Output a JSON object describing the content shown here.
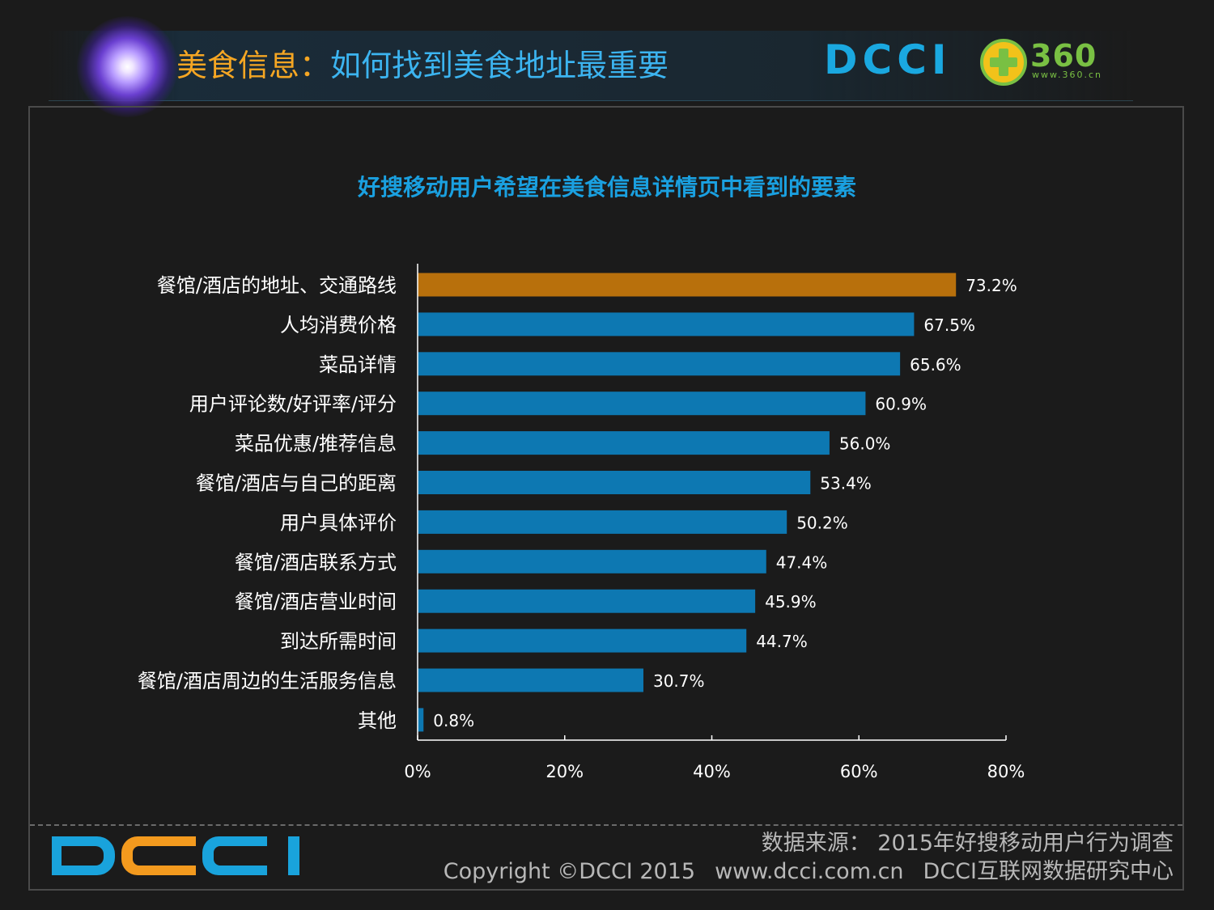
{
  "header": {
    "title_part1": "美食信息",
    "separator": "：",
    "title_part2": "如何找到美食地址最重要",
    "logo_dcci": "DCCI",
    "logo_360": "360",
    "logo_360_url": "www.360.cn"
  },
  "colors": {
    "highlight_bar": "#b8700c",
    "bar": "#0d78b2",
    "title": "#1aa0e0",
    "dcci_blue": "#1aa8e0",
    "dcci_orange": "#f39a1e"
  },
  "chart_data": {
    "type": "bar",
    "orientation": "horizontal",
    "title": "好搜移动用户希望在美食信息详情页中看到的要素",
    "categories": [
      "餐馆/酒店的地址、交通路线",
      "人均消费价格",
      "菜品详情",
      "用户评论数/好评率/评分",
      "菜品优惠/推荐信息",
      "餐馆/酒店与自己的距离",
      "用户具体评价",
      "餐馆/酒店联系方式",
      "餐馆/酒店营业时间",
      "到达所需时间",
      "餐馆/酒店周边的生活服务信息",
      "其他"
    ],
    "values": [
      73.2,
      67.5,
      65.6,
      60.9,
      56.0,
      53.4,
      50.2,
      47.4,
      45.9,
      44.7,
      30.7,
      0.8
    ],
    "value_labels": [
      "73.2%",
      "67.5%",
      "65.6%",
      "60.9%",
      "56.0%",
      "53.4%",
      "50.2%",
      "47.4%",
      "45.9%",
      "44.7%",
      "30.7%",
      "0.8%"
    ],
    "highlight_index": 0,
    "xlim": [
      0,
      80
    ],
    "xticks": [
      0,
      20,
      40,
      60,
      80
    ],
    "xtick_labels": [
      "0%",
      "20%",
      "40%",
      "60%",
      "80%"
    ],
    "grid": false,
    "legend": "none"
  },
  "footer": {
    "logo": "DCCI",
    "source": "数据来源： 2015年好搜移动用户行为调查",
    "copyright": "Copyright ©DCCI 2015",
    "website": "www.dcci.com.cn",
    "org": "DCCI互联网数据研究中心"
  }
}
